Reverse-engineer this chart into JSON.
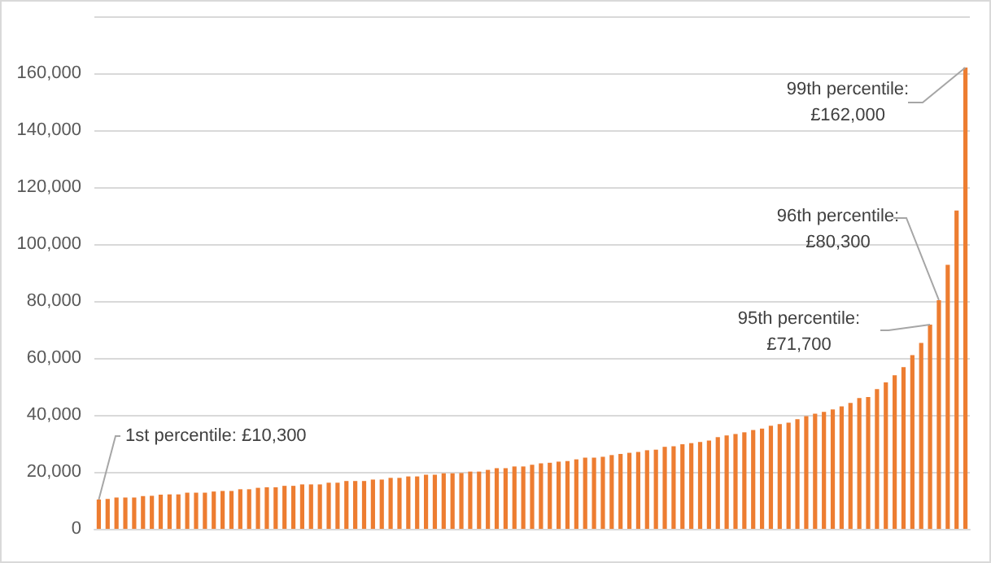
{
  "chart_data": {
    "type": "bar",
    "categories": [
      null,
      null,
      null,
      null,
      null,
      null,
      null,
      null,
      null,
      null,
      null,
      null,
      null,
      null,
      null,
      null,
      null,
      null,
      null,
      null,
      null,
      null,
      null,
      null,
      null,
      null,
      null,
      null,
      null,
      null,
      null,
      null,
      null,
      null,
      null,
      null,
      null,
      null,
      null,
      null,
      null,
      null,
      null,
      null,
      null,
      null,
      null,
      null,
      null,
      null,
      null,
      null,
      null,
      null,
      null,
      null,
      null,
      null,
      null,
      null,
      null,
      null,
      null,
      null,
      null,
      null,
      null,
      null,
      null,
      null,
      null,
      null,
      null,
      null,
      null,
      null,
      null,
      null,
      null,
      null,
      null,
      null,
      null,
      null,
      null,
      null,
      null,
      null,
      null,
      null,
      null,
      null,
      null,
      null,
      null,
      null,
      null,
      null,
      null
    ],
    "values": [
      10300,
      10500,
      11000,
      11000,
      11000,
      11500,
      11600,
      12000,
      12100,
      12100,
      12700,
      12700,
      12700,
      13100,
      13300,
      13300,
      13900,
      13900,
      14400,
      14600,
      14600,
      15100,
      15100,
      15600,
      15600,
      15600,
      16200,
      16200,
      16800,
      16800,
      16800,
      17300,
      17300,
      17900,
      17900,
      18400,
      18400,
      19000,
      19000,
      19500,
      19500,
      19600,
      20100,
      20100,
      20700,
      21300,
      21300,
      21900,
      21900,
      22500,
      23000,
      23200,
      23600,
      23800,
      24400,
      25000,
      25000,
      25300,
      25900,
      26300,
      26700,
      27000,
      27600,
      27800,
      28800,
      29000,
      29700,
      30100,
      30500,
      31000,
      32200,
      32800,
      33300,
      33900,
      34700,
      35200,
      36200,
      36800,
      37300,
      38500,
      39600,
      40400,
      41100,
      41900,
      43000,
      44200,
      45900,
      46300,
      49100,
      51400,
      53900,
      56800,
      61000,
      65300,
      71700,
      80300,
      92700,
      111800,
      162000
    ],
    "color": "#ed7d31",
    "ylim": [
      0,
      180000
    ],
    "yticks": [
      0,
      {
        "value": 20000,
        "label": "20,000"
      },
      {
        "value": 40000,
        "label": "40,000"
      },
      {
        "value": 60000,
        "label": "60,000"
      },
      {
        "value": 80000,
        "label": "80,000"
      },
      {
        "value": 100000,
        "label": "100,000"
      },
      {
        "value": 120000,
        "label": "120,000"
      },
      {
        "value": 140000,
        "label": "140,000"
      },
      {
        "value": 160000,
        "label": "160,000"
      },
      {
        "value": 180000,
        "label": null
      }
    ],
    "grid": "y",
    "annotations": [
      "1st percentile: £10,300",
      "95th percentile:\n£71,700",
      "96th percentile:\n£80,300",
      "99th percentile:\n£162,000"
    ]
  }
}
